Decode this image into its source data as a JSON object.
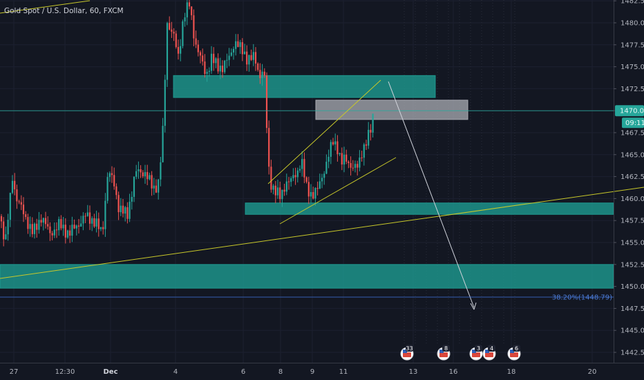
{
  "header": {
    "title": "Gold Spot / U.S. Dollar, 60, FXCM"
  },
  "colors": {
    "background": "#131722",
    "up": "#26a69a",
    "down": "#ef5350",
    "zone": "#1e9e94",
    "zone_gray": "#b0b3ba",
    "trendline": "#c8c82a",
    "arrow": "#d1d4dc",
    "fib": "#3d6fd6",
    "price_line": "#2aa89a"
  },
  "axis": {
    "y_labels": [
      "1482.50",
      "1480.00",
      "1477.50",
      "1475.00",
      "1472.50",
      "1470.00",
      "1467.50",
      "1465.00",
      "1462.50",
      "1460.00",
      "1457.50",
      "1455.00",
      "1452.50",
      "1450.00",
      "1447.50",
      "1445.00",
      "1442.50"
    ],
    "y_values": [
      1482.5,
      1480,
      1477.5,
      1475,
      1472.5,
      1470,
      1467.5,
      1465,
      1462.5,
      1460,
      1457.5,
      1455,
      1452.5,
      1450,
      1447.5,
      1445,
      1442.5
    ],
    "x_labels": [
      "27",
      "12:30",
      "Dec",
      "4",
      "6",
      "8",
      "9",
      "11",
      "13",
      "16",
      "18",
      "20"
    ],
    "x_bold": [
      "Dec"
    ]
  },
  "price_tag": {
    "label": "1470.00",
    "value": 1470.0
  },
  "countdown": {
    "label": "09:11"
  },
  "fib": {
    "label": "38.20%(1448.79)",
    "value": 1448.79
  },
  "events": [
    {
      "label": "33",
      "icon": "us-flag-icon"
    },
    {
      "label": "8",
      "icon": "us-flag-icon"
    },
    {
      "label": "3",
      "icon": "us-flag-icon"
    },
    {
      "label": "4",
      "icon": "us-flag-icon"
    },
    {
      "label": "6",
      "icon": "us-flag-icon"
    }
  ],
  "zones": [
    {
      "name": "supply-zone-upper",
      "from": 1471.5,
      "to": 1474.0,
      "color": "zone"
    },
    {
      "name": "resistance-zone-gray",
      "from": 1469.0,
      "to": 1471.2,
      "color": "zone_gray"
    },
    {
      "name": "support-zone-mid",
      "from": 1458.2,
      "to": 1459.5,
      "color": "zone"
    },
    {
      "name": "support-zone-lower",
      "from": 1449.8,
      "to": 1452.5,
      "color": "zone"
    }
  ]
}
